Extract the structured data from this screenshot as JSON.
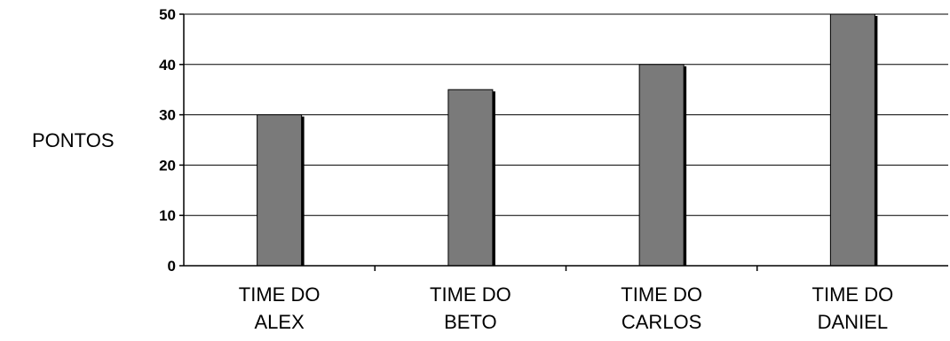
{
  "chart_data": {
    "type": "bar",
    "categories": [
      [
        "TIME DO",
        "ALEX"
      ],
      [
        "TIME DO",
        "BETO"
      ],
      [
        "TIME DO",
        "CARLOS"
      ],
      [
        "TIME DO",
        "DANIEL"
      ]
    ],
    "values": [
      30,
      35,
      40,
      50
    ],
    "ylabel": "PONTOS",
    "ylim": [
      0,
      50
    ],
    "yticks": [
      0,
      10,
      20,
      30,
      40,
      50
    ],
    "grid": true,
    "bar_color": "#7a7a7a"
  }
}
